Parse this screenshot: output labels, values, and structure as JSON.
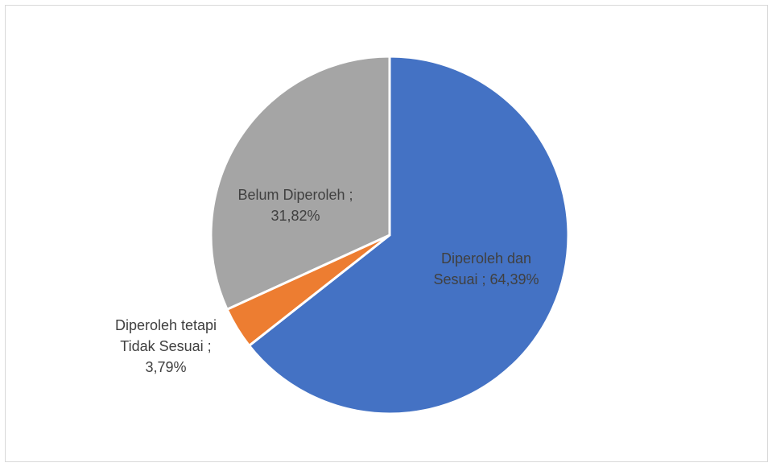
{
  "chart_data": {
    "type": "pie",
    "title": "",
    "slices": [
      {
        "name": "Diperoleh dan Sesuai",
        "value": 64.39,
        "label_lines": [
          "Diperoleh dan",
          "Sesuai ; 64,39%"
        ],
        "color": "#4472C4"
      },
      {
        "name": "Diperoleh tetapi Tidak Sesuai",
        "value": 3.79,
        "label_lines": [
          "Diperoleh tetapi",
          "Tidak Sesuai ;",
          "3,79%"
        ],
        "color": "#ED7D31"
      },
      {
        "name": "Belum Diperoleh",
        "value": 31.82,
        "label_lines": [
          "Belum Diperoleh ;",
          "31,82%"
        ],
        "color": "#A5A5A5"
      }
    ],
    "start_angle": "12 o'clock",
    "direction": "clockwise",
    "legend": "none",
    "slice_border_color": "#ffffff"
  }
}
